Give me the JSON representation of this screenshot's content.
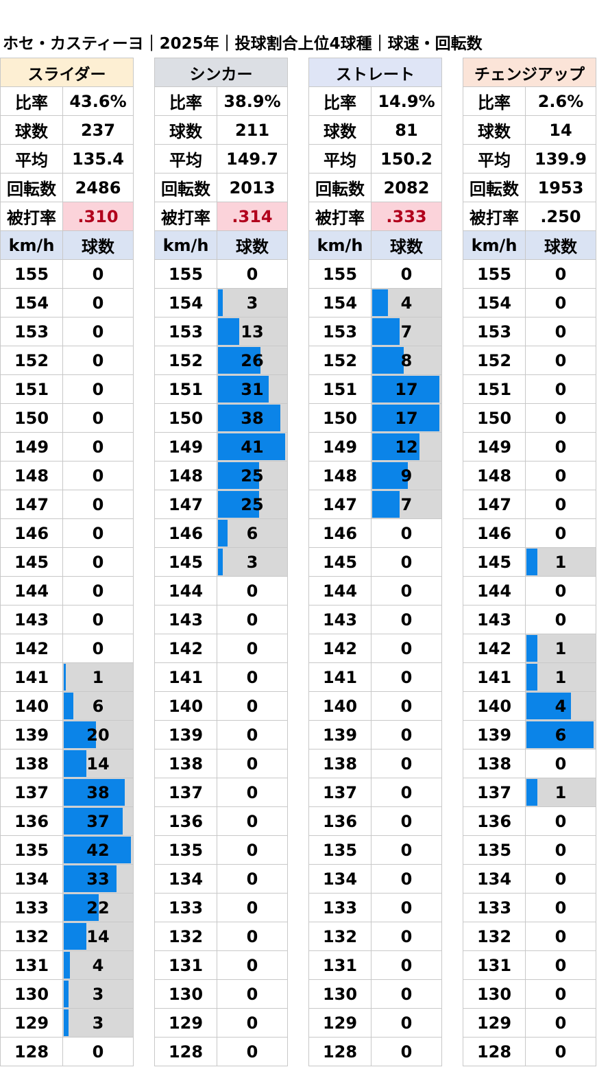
{
  "title": "ホセ・カスティーヨ｜2025年｜投球割合上位4球種｜球速・回転数",
  "labels": {
    "ratio": "比率",
    "count": "球数",
    "avg": "平均",
    "spin": "回転数",
    "batting_avg": "被打率",
    "kmh": "km/h",
    "count_col": "球数"
  },
  "colors": {
    "bar": "#0b84e8",
    "bar_background": "#d8d8d8",
    "batting_avg_highlight_bg": "#fbd3da",
    "batting_avg_highlight_text": "#b1001c",
    "speed_header_bg": "#dae3f3"
  },
  "pitches": [
    {
      "name": "スライダー",
      "header_color": "#fdefd3",
      "ratio": "43.6%",
      "count": "237",
      "avg": "135.4",
      "spin": "2486",
      "batting_avg": ".310",
      "batting_avg_highlight": true
    },
    {
      "name": "シンカー",
      "header_color": "#dcdfe4",
      "ratio": "38.9%",
      "count": "211",
      "avg": "149.7",
      "spin": "2013",
      "batting_avg": ".314",
      "batting_avg_highlight": true
    },
    {
      "name": "ストレート",
      "header_color": "#dfe5f6",
      "ratio": "14.9%",
      "count": "81",
      "avg": "150.2",
      "spin": "2082",
      "batting_avg": ".333",
      "batting_avg_highlight": true
    },
    {
      "name": "チェンジアップ",
      "header_color": "#fbe4d8",
      "ratio": "2.6%",
      "count": "14",
      "avg": "139.9",
      "spin": "1953",
      "batting_avg": ".250",
      "batting_avg_highlight": false
    }
  ],
  "chart_data": {
    "type": "bar",
    "orientation": "horizontal",
    "categories": [
      "155",
      "154",
      "153",
      "152",
      "151",
      "150",
      "149",
      "148",
      "147",
      "146",
      "145",
      "144",
      "143",
      "142",
      "141",
      "140",
      "139",
      "138",
      "137",
      "136",
      "135",
      "134",
      "133",
      "132",
      "131",
      "130",
      "129",
      "128"
    ],
    "series": [
      {
        "name": "スライダー",
        "values": [
          0,
          0,
          0,
          0,
          0,
          0,
          0,
          0,
          0,
          0,
          0,
          0,
          0,
          0,
          1,
          6,
          20,
          14,
          38,
          37,
          42,
          33,
          22,
          14,
          4,
          3,
          3,
          0
        ]
      },
      {
        "name": "シンカー",
        "values": [
          0,
          3,
          13,
          26,
          31,
          38,
          41,
          25,
          25,
          6,
          3,
          0,
          0,
          0,
          0,
          0,
          0,
          0,
          0,
          0,
          0,
          0,
          0,
          0,
          0,
          0,
          0,
          0
        ]
      },
      {
        "name": "ストレート",
        "values": [
          0,
          4,
          7,
          8,
          17,
          17,
          12,
          9,
          7,
          0,
          0,
          0,
          0,
          0,
          0,
          0,
          0,
          0,
          0,
          0,
          0,
          0,
          0,
          0,
          0,
          0,
          0,
          0
        ]
      },
      {
        "name": "チェンジアップ",
        "values": [
          0,
          0,
          0,
          0,
          0,
          0,
          0,
          0,
          0,
          0,
          1,
          0,
          0,
          1,
          1,
          4,
          6,
          0,
          1,
          0,
          0,
          0,
          0,
          0,
          0,
          0,
          0,
          0
        ]
      }
    ]
  }
}
